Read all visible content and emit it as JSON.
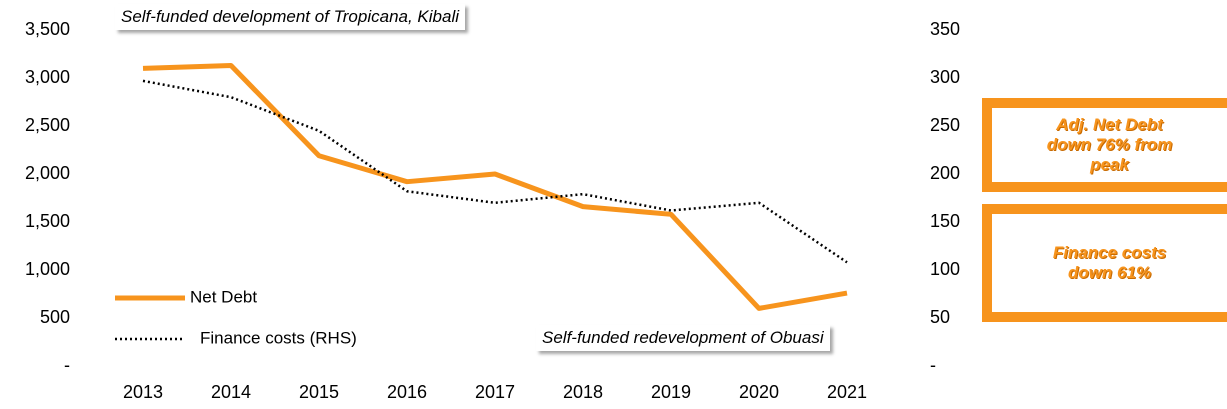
{
  "chart_data": {
    "type": "line",
    "categories": [
      "2013",
      "2014",
      "2015",
      "2016",
      "2017",
      "2018",
      "2019",
      "2020",
      "2021"
    ],
    "series": [
      {
        "name": "Net Debt",
        "color": "#f7941d",
        "values": [
          3100,
          3130,
          2190,
          1920,
          2000,
          1660,
          1580,
          600,
          760
        ]
      },
      {
        "name": "Finance costs (RHS)",
        "color": "#000000",
        "axis": "y2",
        "values": [
          297,
          280,
          245,
          182,
          170,
          179,
          162,
          170,
          108
        ]
      }
    ],
    "ylim": [
      0,
      3500
    ],
    "yticks": [
      {
        "value": 0,
        "label": "-"
      },
      500,
      {
        "value": 1000,
        "label": "1,000"
      },
      {
        "value": 1500,
        "label": "1,500"
      },
      {
        "value": 2000,
        "label": "2,000"
      },
      {
        "value": 2500,
        "label": "2,500"
      },
      {
        "value": 3000,
        "label": "3,000"
      },
      {
        "value": 3500,
        "label": "3,500"
      }
    ],
    "y2lim": [
      0,
      350
    ],
    "y2ticks": [
      {
        "value": 0,
        "label": "-"
      },
      50,
      100,
      150,
      200,
      250,
      300,
      350
    ],
    "annotations": [
      "Self-funded development of Tropicana, Kibali",
      "Self-funded redevelopment of Obuasi",
      "Adj. Net Debt down 76% from peak",
      "Finance costs down 61%"
    ]
  }
}
